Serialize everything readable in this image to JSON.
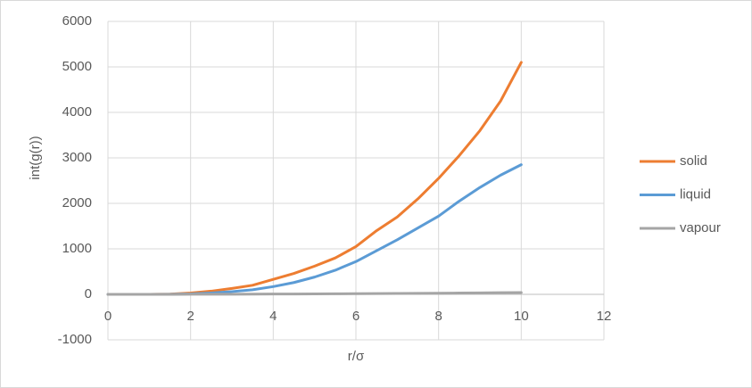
{
  "chart_data": {
    "type": "line",
    "x_label": "r/σ",
    "y_label": "int(g(r))",
    "x": [
      0,
      0.5,
      1,
      1.5,
      2,
      2.5,
      3,
      3.5,
      4,
      4.5,
      5,
      5.5,
      6,
      6.5,
      7,
      7.5,
      8,
      8.5,
      9,
      9.5,
      10
    ],
    "series": [
      {
        "name": "solid",
        "color": "#ed7d31",
        "values": [
          0,
          0,
          0,
          5,
          30,
          70,
          130,
          200,
          330,
          460,
          620,
          800,
          1050,
          1400,
          1700,
          2100,
          2550,
          3050,
          3600,
          4250,
          5100
        ]
      },
      {
        "name": "liquid",
        "color": "#5b9bd5",
        "values": [
          0,
          0,
          0,
          2,
          10,
          30,
          60,
          100,
          170,
          260,
          380,
          530,
          720,
          960,
          1200,
          1460,
          1720,
          2050,
          2350,
          2620,
          2850
        ]
      },
      {
        "name": "vapour",
        "color": "#a5a5a5",
        "values": [
          0,
          0.1,
          0.4,
          0.9,
          1.6,
          2.5,
          3.6,
          4.9,
          6.4,
          8.1,
          10,
          12.1,
          14.4,
          16.9,
          19.6,
          22.5,
          25.6,
          28.9,
          32.4,
          36.1,
          40
        ]
      }
    ],
    "xlim": [
      0,
      12
    ],
    "xticks": [
      0,
      2,
      4,
      6,
      8,
      10,
      12
    ],
    "ylim": [
      -1000,
      6000
    ],
    "yticks": [
      -1000,
      0,
      1000,
      2000,
      3000,
      4000,
      5000,
      6000
    ],
    "grid": true,
    "legend": "right"
  }
}
